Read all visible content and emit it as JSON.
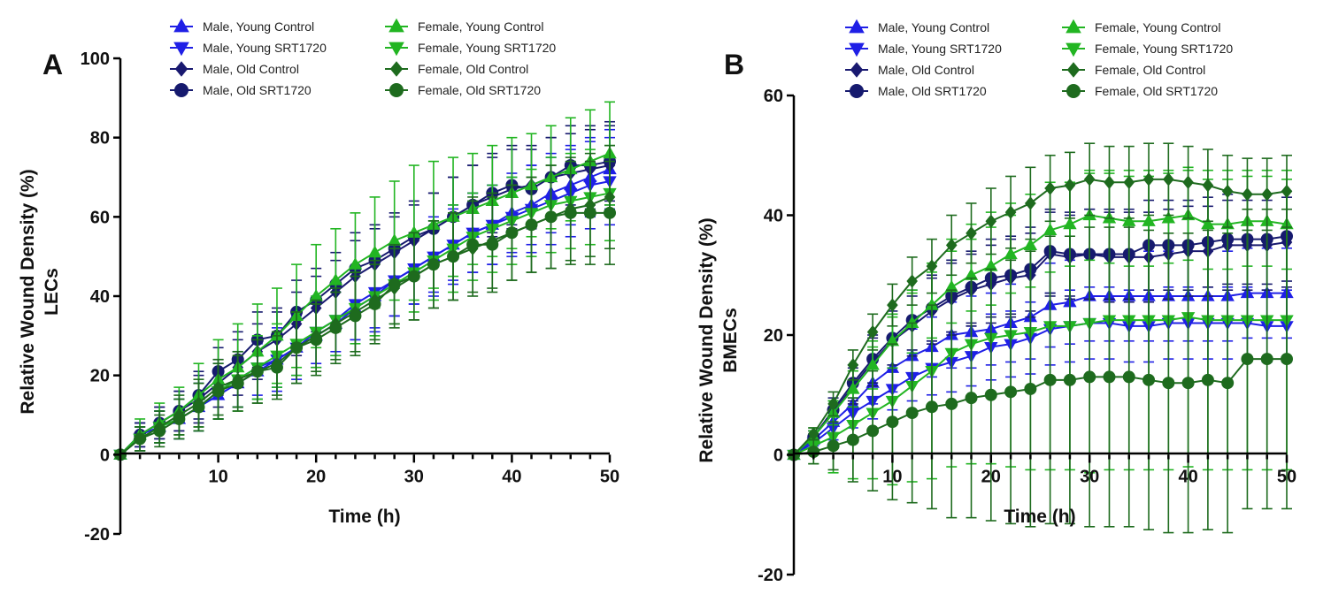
{
  "chart_data": [
    {
      "panel": "A",
      "type": "line",
      "xlabel": "Time (h)",
      "ylabel": [
        "Relative Wound Density (%)",
        "LECs"
      ],
      "xlim": [
        0,
        50
      ],
      "ylim": [
        -20,
        100
      ],
      "xticks": [
        10,
        20,
        30,
        40,
        50
      ],
      "yticks": [
        -20,
        0,
        20,
        40,
        60,
        80,
        100
      ],
      "grid": false,
      "x": [
        0,
        2,
        4,
        6,
        8,
        10,
        12,
        14,
        16,
        18,
        20,
        22,
        24,
        26,
        28,
        30,
        32,
        34,
        36,
        38,
        40,
        42,
        44,
        46,
        48,
        50
      ],
      "series": [
        {
          "name": "Male, Young Control",
          "color": "#1f1fe6",
          "marker": "triangle-up",
          "values": [
            0,
            5,
            7,
            9,
            12,
            15,
            18,
            21,
            24,
            27,
            30,
            33,
            37,
            40,
            44,
            47,
            50,
            53,
            56,
            58,
            61,
            63,
            66,
            68,
            70,
            72
          ],
          "errors": [
            0,
            3,
            4,
            5,
            6,
            6,
            6,
            7,
            7,
            7,
            8,
            8,
            8,
            9,
            9,
            9,
            9,
            9,
            10,
            10,
            10,
            10,
            10,
            10,
            10,
            10
          ]
        },
        {
          "name": "Male, Young SRT1720",
          "color": "#1f1fe6",
          "marker": "triangle-down",
          "values": [
            0,
            4,
            7,
            9,
            12,
            16,
            19,
            22,
            24,
            27,
            31,
            34,
            38,
            41,
            44,
            47,
            50,
            53,
            56,
            58,
            60,
            62,
            64,
            66,
            68,
            69
          ],
          "errors": [
            0,
            3,
            4,
            5,
            6,
            7,
            7,
            7,
            8,
            8,
            8,
            8,
            9,
            9,
            9,
            9,
            10,
            10,
            10,
            10,
            10,
            11,
            11,
            11,
            11,
            11
          ]
        },
        {
          "name": "Male, Old Control",
          "color": "#191970",
          "marker": "diamond",
          "values": [
            0,
            5,
            8,
            11,
            14,
            18,
            22,
            26,
            29,
            33,
            37,
            41,
            45,
            48,
            51,
            54,
            57,
            60,
            63,
            65,
            67,
            68,
            70,
            71,
            72,
            73
          ],
          "errors": [
            0,
            3,
            4,
            5,
            6,
            6,
            7,
            7,
            7,
            8,
            8,
            8,
            9,
            9,
            9,
            9,
            9,
            10,
            10,
            10,
            10,
            10,
            10,
            10,
            10,
            10
          ]
        },
        {
          "name": "Male, Old SRT1720",
          "color": "#161a6e",
          "marker": "circle",
          "values": [
            0,
            5,
            8,
            11,
            15,
            21,
            24,
            29,
            30,
            36,
            39,
            43,
            47,
            49,
            52,
            55,
            57,
            60,
            63,
            66,
            68,
            67,
            70,
            73,
            73,
            74
          ],
          "errors": [
            0,
            3,
            4,
            5,
            6,
            6,
            7,
            7,
            7,
            8,
            8,
            8,
            9,
            9,
            9,
            9,
            9,
            10,
            10,
            10,
            10,
            10,
            10,
            10,
            10,
            10
          ]
        },
        {
          "name": "Female, Young Control",
          "color": "#22b522",
          "marker": "triangle-up",
          "values": [
            0,
            5,
            8,
            11,
            15,
            19,
            22,
            26,
            30,
            35,
            40,
            44,
            48,
            51,
            54,
            56,
            58,
            60,
            62,
            64,
            66,
            68,
            70,
            72,
            74,
            76
          ],
          "errors": [
            0,
            4,
            5,
            6,
            8,
            10,
            11,
            12,
            12,
            13,
            13,
            13,
            13,
            14,
            15,
            17,
            16,
            15,
            14,
            14,
            14,
            13,
            13,
            13,
            13,
            13
          ]
        },
        {
          "name": "Female, Young SRT1720",
          "color": "#22b522",
          "marker": "triangle-down",
          "values": [
            0,
            4,
            7,
            9,
            12,
            16,
            19,
            22,
            25,
            28,
            31,
            34,
            37,
            40,
            43,
            46,
            49,
            52,
            55,
            57,
            59,
            61,
            63,
            64,
            65,
            66
          ],
          "errors": [
            0,
            3,
            4,
            5,
            6,
            7,
            7,
            8,
            8,
            8,
            9,
            9,
            9,
            10,
            10,
            10,
            10,
            11,
            11,
            11,
            11,
            11,
            12,
            12,
            12,
            12
          ]
        },
        {
          "name": "Female, Old Control",
          "color": "#1e6b1e",
          "marker": "diamond",
          "values": [
            0,
            4,
            7,
            10,
            13,
            17,
            19,
            21,
            23,
            27,
            30,
            33,
            36,
            39,
            42,
            45,
            48,
            50,
            52,
            54,
            56,
            58,
            60,
            62,
            63,
            65
          ],
          "errors": [
            0,
            3,
            4,
            5,
            6,
            7,
            7,
            8,
            8,
            9,
            9,
            9,
            10,
            10,
            10,
            11,
            11,
            11,
            12,
            12,
            12,
            12,
            13,
            13,
            13,
            13
          ]
        },
        {
          "name": "Female, Old SRT1720",
          "color": "#1e6b1e",
          "marker": "circle",
          "values": [
            0,
            4,
            6,
            9,
            12,
            16,
            18,
            21,
            22,
            27,
            29,
            32,
            35,
            38,
            43,
            45,
            48,
            50,
            53,
            53,
            56,
            58,
            60,
            61,
            61,
            61
          ],
          "errors": [
            0,
            3,
            4,
            5,
            6,
            7,
            7,
            8,
            8,
            9,
            9,
            9,
            10,
            10,
            10,
            11,
            11,
            11,
            12,
            12,
            12,
            12,
            13,
            13,
            13,
            13
          ]
        }
      ]
    },
    {
      "panel": "B",
      "type": "line",
      "xlabel": "Time (h)",
      "ylabel": [
        "Relative Wound Density (%)",
        "BMECs"
      ],
      "xlim": [
        0,
        50
      ],
      "ylim": [
        -20,
        60
      ],
      "xticks": [
        10,
        20,
        30,
        40,
        50
      ],
      "yticks": [
        -20,
        0,
        20,
        40,
        60
      ],
      "grid": false,
      "x": [
        0,
        2,
        4,
        6,
        8,
        10,
        12,
        14,
        16,
        18,
        20,
        22,
        24,
        26,
        28,
        30,
        32,
        34,
        36,
        38,
        40,
        42,
        44,
        46,
        48,
        50
      ],
      "series": [
        {
          "name": "Male, Young Control",
          "color": "#1f1fe6",
          "marker": "triangle-up",
          "values": [
            0,
            2.5,
            5.5,
            8.5,
            12,
            14.5,
            16.5,
            18,
            20,
            20.5,
            21,
            22,
            23,
            25,
            25.5,
            26.5,
            26.5,
            26.5,
            26.5,
            26.5,
            26.5,
            26.5,
            26.5,
            27,
            27,
            27
          ],
          "errors": [
            0,
            1,
            2,
            3,
            3.5,
            4,
            4.5,
            5,
            5.5,
            6,
            6,
            6.5,
            7,
            7,
            7,
            7.5,
            7.5,
            7.5,
            7.5,
            7.5,
            7.5,
            7.5,
            7.5,
            7.5,
            7.5,
            7.5
          ]
        },
        {
          "name": "Male, Young SRT1720",
          "color": "#1f1fe6",
          "marker": "triangle-down",
          "values": [
            0,
            2,
            4.5,
            7,
            9,
            11,
            13,
            14.5,
            15.5,
            16.5,
            18,
            18.5,
            19.5,
            21,
            21.5,
            22,
            22,
            21.5,
            21.5,
            22,
            22,
            22,
            22,
            22,
            21.5,
            21.5
          ],
          "errors": [
            0,
            1,
            2,
            2.5,
            3,
            3.5,
            4,
            4.5,
            5,
            5,
            5.5,
            5.5,
            6,
            6,
            6,
            6,
            6,
            6,
            6,
            6,
            6,
            6,
            6,
            6,
            6,
            6
          ]
        },
        {
          "name": "Male, Old Control",
          "color": "#191970",
          "marker": "diamond",
          "values": [
            0,
            3,
            7,
            11.5,
            15.5,
            19,
            21.5,
            24,
            26,
            27.5,
            28.5,
            29.5,
            30,
            33.5,
            33,
            33.5,
            33,
            33,
            33,
            33.5,
            34,
            34,
            35,
            35,
            35,
            35.5
          ],
          "errors": [
            0,
            1,
            2,
            3,
            4,
            4.5,
            5,
            5.5,
            6,
            6,
            6.5,
            6.5,
            7,
            7,
            7,
            7.5,
            7.5,
            7.5,
            7.5,
            7.5,
            7.5,
            7.5,
            7.5,
            7.5,
            7.5,
            7.5
          ]
        },
        {
          "name": "Male, Old SRT1720",
          "color": "#161a6e",
          "marker": "circle",
          "values": [
            0,
            3,
            7.5,
            12,
            16,
            19.5,
            22.5,
            24.5,
            26.5,
            28,
            29.5,
            30,
            31,
            34,
            33.5,
            33.5,
            33.5,
            33.5,
            35,
            35,
            35,
            35.5,
            36,
            36,
            36,
            36.5
          ],
          "errors": [
            0,
            1,
            2,
            3,
            4,
            4.5,
            5,
            5.5,
            6,
            6,
            6.5,
            6.5,
            7,
            7,
            7,
            7.5,
            7.5,
            7.5,
            7.5,
            7.5,
            7.5,
            7.5,
            7.5,
            7.5,
            7.5,
            7.5
          ]
        },
        {
          "name": "Female, Young Control",
          "color": "#22b522",
          "marker": "triangle-up",
          "values": [
            0,
            3,
            7,
            11,
            15,
            19,
            22,
            25,
            28,
            30,
            31.5,
            33.5,
            35,
            37.5,
            38.5,
            40,
            39.5,
            39,
            39,
            39.5,
            40,
            38.5,
            38.5,
            39,
            39,
            38.5
          ],
          "errors": [
            0,
            1,
            2,
            3,
            4,
            4.5,
            5,
            5.5,
            6,
            6,
            6.5,
            6.5,
            7,
            7,
            7,
            7.5,
            7.5,
            7.5,
            7.5,
            7.5,
            7.5,
            7.5,
            7.5,
            7.5,
            7.5,
            7.5
          ]
        },
        {
          "name": "Female, Young SRT1720",
          "color": "#22b522",
          "marker": "triangle-down",
          "values": [
            0,
            1.5,
            3,
            5,
            7,
            9,
            11.5,
            14,
            17,
            18.5,
            19.5,
            20,
            20.5,
            21.5,
            21.5,
            22,
            22.5,
            22.5,
            22.5,
            22.5,
            23,
            22.5,
            22.5,
            22.5,
            22.5,
            22.5
          ],
          "errors": [
            0,
            3,
            6,
            9,
            11,
            14,
            16,
            18,
            19,
            20,
            21,
            22,
            23,
            24,
            24,
            25,
            25,
            25,
            25,
            25,
            25,
            25,
            25,
            25,
            25,
            25
          ]
        },
        {
          "name": "Female, Old Control",
          "color": "#1e6b1e",
          "marker": "diamond",
          "values": [
            0,
            3.5,
            8.5,
            15,
            20.5,
            25,
            29,
            31.5,
            35,
            37,
            39,
            40.5,
            42,
            44.5,
            45,
            46,
            45.5,
            45.5,
            46,
            46,
            45.5,
            45,
            44,
            43.5,
            43.5,
            44
          ],
          "errors": [
            0,
            1,
            2,
            2.5,
            3,
            3.5,
            4,
            4.5,
            5,
            5,
            5.5,
            6,
            6,
            5.5,
            5.5,
            6,
            6,
            6,
            6,
            6,
            6,
            6,
            6,
            6,
            6,
            6
          ]
        },
        {
          "name": "Female, Old SRT1720",
          "color": "#1e6b1e",
          "marker": "circle",
          "values": [
            0,
            0.5,
            1.5,
            2.5,
            4,
            5.5,
            7,
            8,
            8.5,
            9.5,
            10,
            10.5,
            11,
            12.5,
            12.5,
            13,
            13,
            13,
            12.5,
            12,
            12,
            12.5,
            12,
            16,
            16,
            16
          ],
          "errors": [
            0,
            2,
            4,
            7,
            10,
            13,
            15,
            17,
            19,
            20,
            21,
            22,
            23,
            24,
            24,
            25,
            25,
            25,
            25,
            25,
            25,
            25,
            25,
            25,
            25,
            25
          ]
        }
      ]
    }
  ]
}
